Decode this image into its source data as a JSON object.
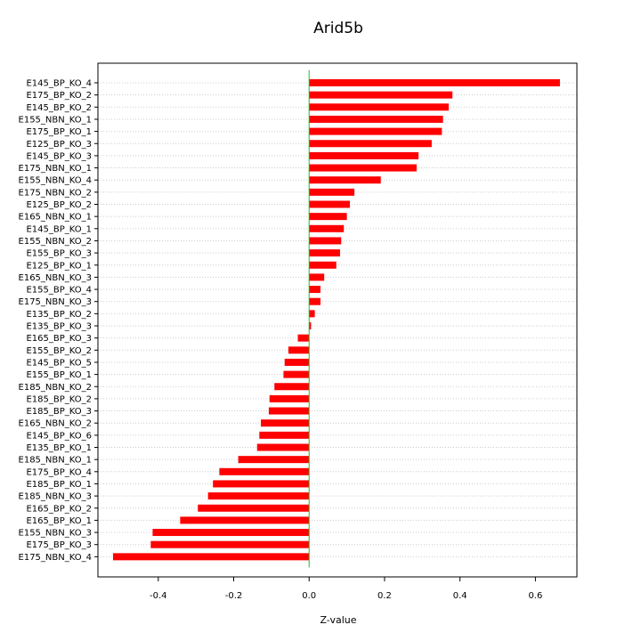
{
  "chart_data": {
    "type": "bar",
    "orientation": "horizontal",
    "title": "Arid5b",
    "xlabel": "Z-value",
    "ylabel": "",
    "xlim": [
      -0.56,
      0.71
    ],
    "xticks": [
      "-0.4",
      "-0.2",
      "0.0",
      "0.2",
      "0.4",
      "0.6"
    ],
    "xtick_values": [
      -0.4,
      -0.2,
      0.0,
      0.2,
      0.4,
      0.6
    ],
    "grid": true,
    "bar_color": "#ff0000",
    "zero_line_color": "#22bb22",
    "categories": [
      "E145_BP_KO_4",
      "E175_BP_KO_2",
      "E145_BP_KO_2",
      "E155_NBN_KO_1",
      "E175_BP_KO_1",
      "E125_BP_KO_3",
      "E145_BP_KO_3",
      "E175_NBN_KO_1",
      "E155_NBN_KO_4",
      "E175_NBN_KO_2",
      "E125_BP_KO_2",
      "E165_NBN_KO_1",
      "E145_BP_KO_1",
      "E155_NBN_KO_2",
      "E155_BP_KO_3",
      "E125_BP_KO_1",
      "E165_NBN_KO_3",
      "E155_BP_KO_4",
      "E175_NBN_KO_3",
      "E135_BP_KO_2",
      "E135_BP_KO_3",
      "E165_BP_KO_3",
      "E155_BP_KO_2",
      "E145_BP_KO_5",
      "E155_BP_KO_1",
      "E185_NBN_KO_2",
      "E185_BP_KO_2",
      "E185_BP_KO_3",
      "E165_NBN_KO_2",
      "E145_BP_KO_6",
      "E135_BP_KO_1",
      "E185_NBN_KO_1",
      "E175_BP_KO_4",
      "E185_BP_KO_1",
      "E185_NBN_KO_3",
      "E165_BP_KO_2",
      "E165_BP_KO_1",
      "E155_NBN_KO_3",
      "E175_BP_KO_3",
      "E175_NBN_KO_4"
    ],
    "values": [
      0.665,
      0.38,
      0.37,
      0.355,
      0.352,
      0.325,
      0.29,
      0.285,
      0.19,
      0.12,
      0.108,
      0.1,
      0.092,
      0.085,
      0.082,
      0.072,
      0.04,
      0.03,
      0.03,
      0.015,
      0.005,
      -0.03,
      -0.055,
      -0.065,
      -0.068,
      -0.092,
      -0.105,
      -0.107,
      -0.128,
      -0.132,
      -0.138,
      -0.188,
      -0.238,
      -0.255,
      -0.268,
      -0.295,
      -0.342,
      -0.415,
      -0.42,
      -0.52
    ]
  }
}
